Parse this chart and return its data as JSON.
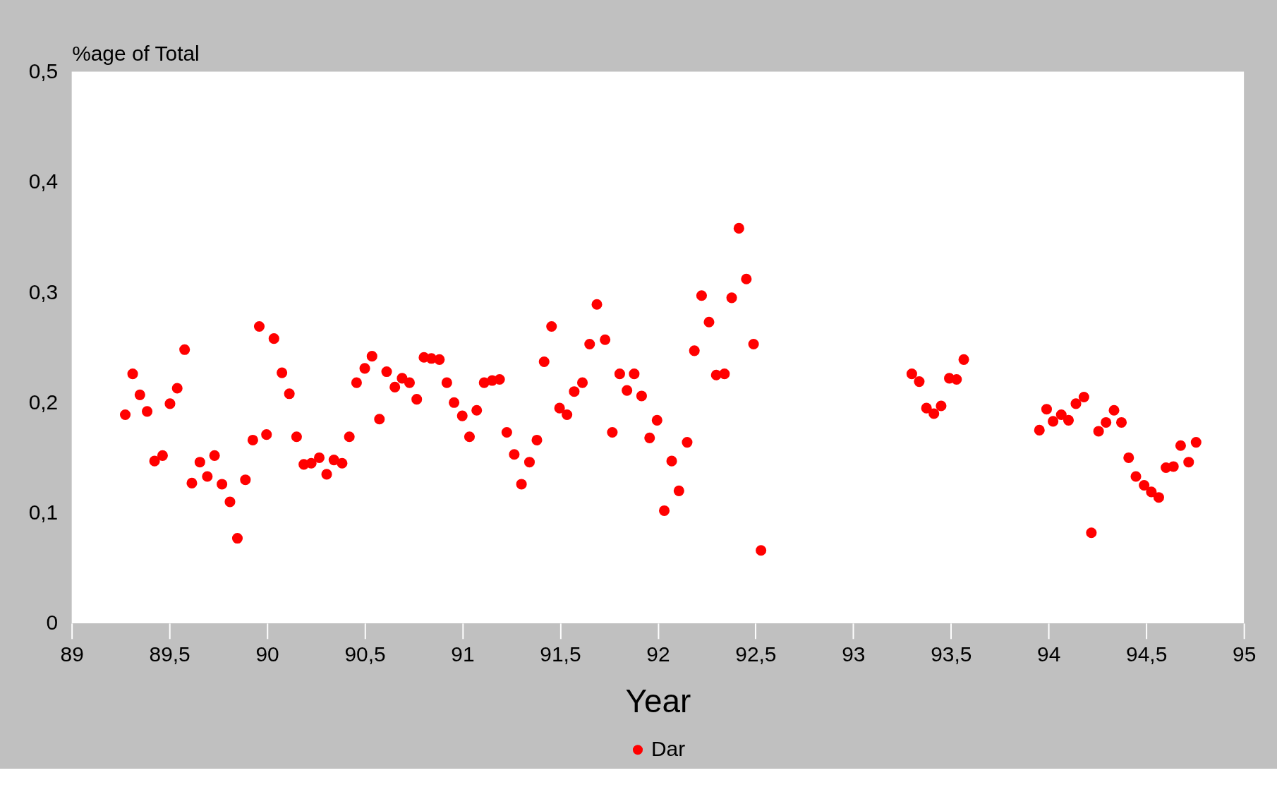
{
  "chart_data": {
    "type": "scatter",
    "ylabel": "%age of Total",
    "xlabel": "Year",
    "xlim": [
      89,
      95
    ],
    "xticks": [
      89,
      {
        "value": 89.5,
        "label": "89,5"
      },
      90,
      {
        "value": 90.5,
        "label": "90,5"
      },
      91,
      {
        "value": 91.5,
        "label": "91,5"
      },
      92,
      {
        "value": 92.5,
        "label": "92,5"
      },
      93,
      {
        "value": 93.5,
        "label": "93,5"
      },
      94,
      {
        "value": 94.5,
        "label": "94,5"
      },
      95
    ],
    "ylim": [
      0,
      0.5
    ],
    "yticks": [
      0,
      {
        "value": 0.1,
        "label": "0,1"
      },
      {
        "value": 0.2,
        "label": "0,2"
      },
      {
        "value": 0.3,
        "label": "0,3"
      },
      {
        "value": 0.4,
        "label": "0,4"
      },
      {
        "value": 0.5,
        "label": "0,5"
      }
    ],
    "grid": false,
    "legend": "bottom",
    "marker": "circle",
    "series": [
      {
        "name": "Dar",
        "color": "#ff0000",
        "x": [
          89.274,
          89.312,
          89.349,
          89.386,
          89.424,
          89.465,
          89.503,
          89.54,
          89.578,
          89.615,
          89.656,
          89.694,
          89.731,
          89.769,
          89.81,
          89.848,
          89.889,
          89.927,
          89.96,
          89.997,
          90.035,
          90.076,
          90.114,
          90.151,
          90.188,
          90.226,
          90.267,
          90.305,
          90.342,
          90.384,
          90.421,
          90.458,
          90.5,
          90.537,
          90.575,
          90.612,
          90.654,
          90.691,
          90.729,
          90.766,
          90.803,
          90.841,
          90.882,
          90.92,
          90.957,
          90.999,
          91.036,
          91.073,
          91.111,
          91.152,
          91.19,
          91.227,
          91.265,
          91.302,
          91.343,
          91.381,
          91.418,
          91.456,
          91.497,
          91.535,
          91.572,
          91.614,
          91.651,
          91.688,
          91.73,
          91.767,
          91.805,
          91.842,
          91.879,
          91.917,
          91.958,
          91.996,
          92.033,
          92.071,
          92.108,
          92.15,
          92.187,
          92.224,
          92.262,
          92.299,
          92.341,
          92.378,
          92.415,
          92.453,
          92.49,
          92.528,
          93.3,
          93.338,
          93.375,
          93.413,
          93.45,
          93.492,
          93.529,
          93.566,
          93.953,
          93.99,
          94.023,
          94.065,
          94.102,
          94.14,
          94.181,
          94.219,
          94.256,
          94.294,
          94.335,
          94.373,
          94.41,
          94.447,
          94.489,
          94.526,
          94.564,
          94.601,
          94.639,
          94.676,
          94.717,
          94.755
        ],
        "values": [
          0.189,
          0.226,
          0.207,
          0.192,
          0.147,
          0.152,
          0.199,
          0.213,
          0.248,
          0.127,
          0.146,
          0.133,
          0.152,
          0.126,
          0.11,
          0.077,
          0.13,
          0.166,
          0.269,
          0.171,
          0.258,
          0.227,
          0.208,
          0.169,
          0.144,
          0.145,
          0.15,
          0.135,
          0.148,
          0.145,
          0.169,
          0.218,
          0.231,
          0.242,
          0.185,
          0.228,
          0.214,
          0.222,
          0.218,
          0.203,
          0.241,
          0.24,
          0.239,
          0.218,
          0.2,
          0.188,
          0.169,
          0.193,
          0.218,
          0.22,
          0.221,
          0.173,
          0.153,
          0.126,
          0.146,
          0.166,
          0.237,
          0.269,
          0.195,
          0.189,
          0.21,
          0.218,
          0.253,
          0.289,
          0.257,
          0.173,
          0.226,
          0.211,
          0.226,
          0.206,
          0.168,
          0.184,
          0.102,
          0.147,
          0.12,
          0.164,
          0.247,
          0.297,
          0.273,
          0.225,
          0.226,
          0.295,
          0.358,
          0.312,
          0.253,
          0.066,
          0.226,
          0.219,
          0.195,
          0.19,
          0.197,
          0.222,
          0.221,
          0.239,
          0.175,
          0.194,
          0.183,
          0.189,
          0.184,
          0.199,
          0.205,
          0.082,
          0.174,
          0.182,
          0.193,
          0.182,
          0.15,
          0.133,
          0.125,
          0.119,
          0.114,
          0.141,
          0.142,
          0.161,
          0.146,
          0.164
        ]
      }
    ]
  }
}
